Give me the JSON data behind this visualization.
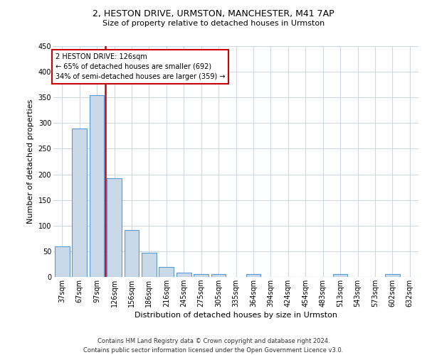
{
  "title1": "2, HESTON DRIVE, URMSTON, MANCHESTER, M41 7AP",
  "title2": "Size of property relative to detached houses in Urmston",
  "xlabel": "Distribution of detached houses by size in Urmston",
  "ylabel": "Number of detached properties",
  "categories": [
    "37sqm",
    "67sqm",
    "97sqm",
    "126sqm",
    "156sqm",
    "186sqm",
    "216sqm",
    "245sqm",
    "275sqm",
    "305sqm",
    "335sqm",
    "364sqm",
    "394sqm",
    "424sqm",
    "454sqm",
    "483sqm",
    "513sqm",
    "543sqm",
    "573sqm",
    "602sqm",
    "632sqm"
  ],
  "values": [
    60,
    290,
    355,
    192,
    91,
    47,
    19,
    8,
    5,
    6,
    0,
    5,
    0,
    0,
    0,
    0,
    5,
    0,
    0,
    5,
    0
  ],
  "bar_color": "#c9d9e8",
  "bar_edge_color": "#5b9bd5",
  "red_line_index": 3,
  "red_line_color": "#cc0000",
  "annotation_text": "2 HESTON DRIVE: 126sqm\n← 65% of detached houses are smaller (692)\n34% of semi-detached houses are larger (359) →",
  "annotation_box_color": "#ffffff",
  "annotation_box_edge": "#cc0000",
  "ylim": [
    0,
    450
  ],
  "yticks": [
    0,
    50,
    100,
    150,
    200,
    250,
    300,
    350,
    400,
    450
  ],
  "footer": "Contains HM Land Registry data © Crown copyright and database right 2024.\nContains public sector information licensed under the Open Government Licence v3.0.",
  "bg_color": "#ffffff",
  "grid_color": "#d0d8e4",
  "title1_fontsize": 9,
  "title2_fontsize": 8,
  "ylabel_fontsize": 8,
  "xlabel_fontsize": 8,
  "tick_fontsize": 7,
  "ann_fontsize": 7,
  "footer_fontsize": 6
}
